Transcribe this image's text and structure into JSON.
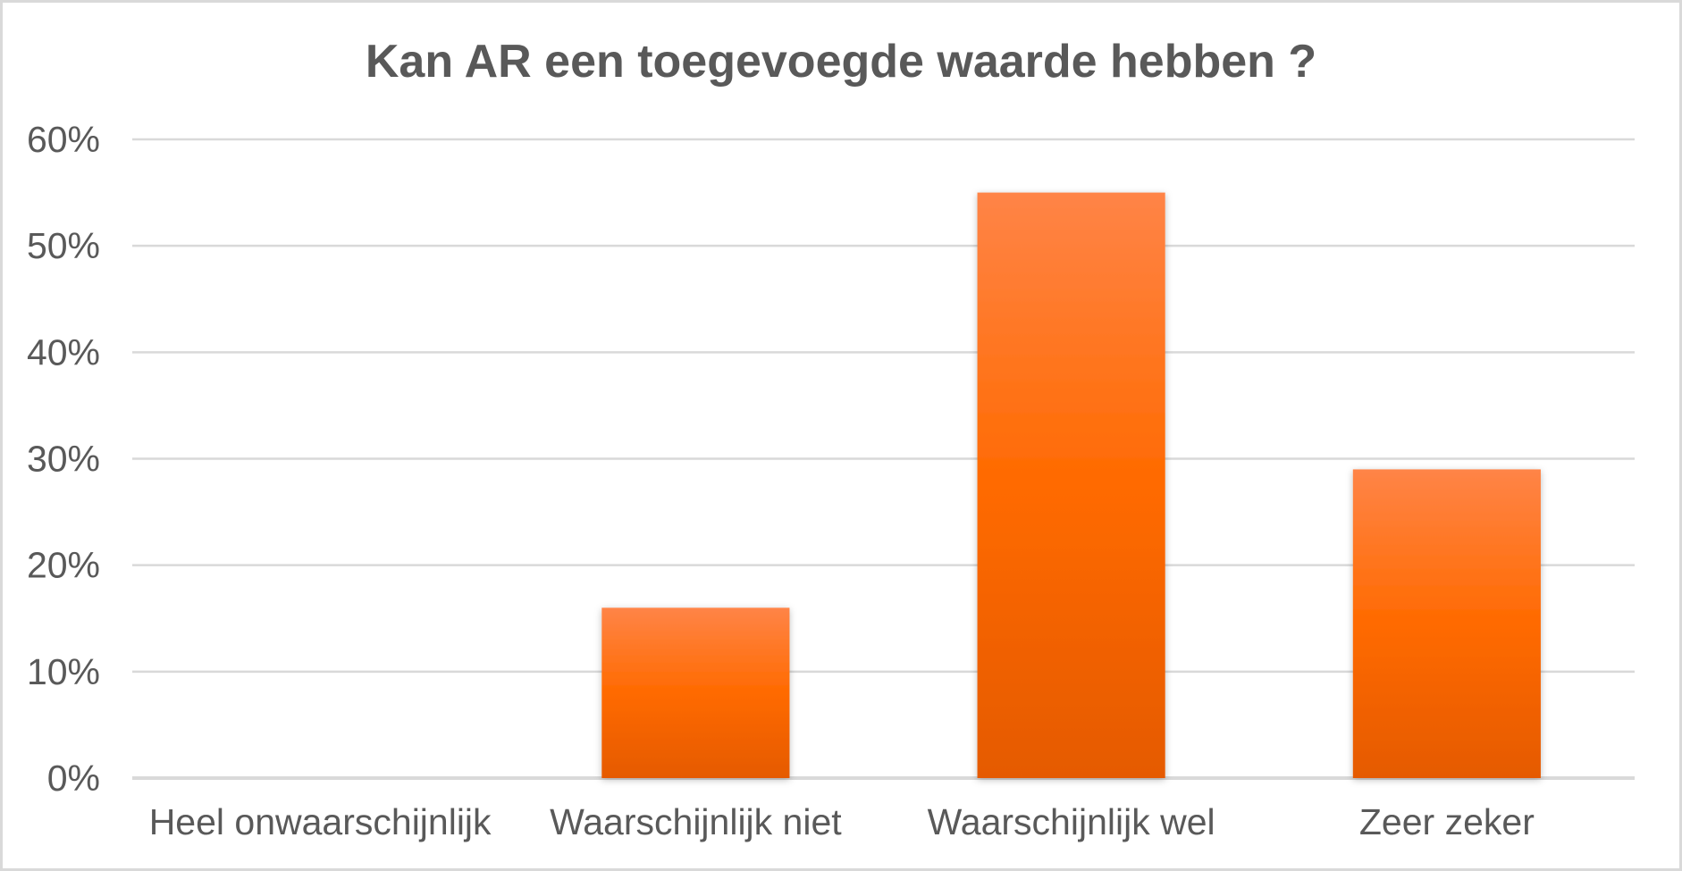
{
  "chart_data": {
    "type": "bar",
    "title": "Kan AR een toegevoegde waarde hebben ?",
    "xlabel": "",
    "ylabel": "",
    "categories": [
      "Heel onwaarschijnlijk",
      "Waarschijnlijk niet",
      "Waarschijnlijk wel",
      "Zeer zeker"
    ],
    "values": [
      0,
      16,
      55,
      29
    ],
    "ylim": [
      0,
      60
    ],
    "yticks": [
      0,
      10,
      20,
      30,
      40,
      50,
      60
    ],
    "ytick_labels": [
      "0%",
      "10%",
      "20%",
      "30%",
      "40%",
      "50%",
      "60%"
    ],
    "grid": true,
    "legend": "none",
    "colors": {
      "bar_top": "#ff8447",
      "bar_mid": "#ff6a00",
      "bar_bottom": "#e55a00",
      "grid": "#d9d9d9",
      "text": "#595959",
      "border": "#d9d9d9"
    }
  }
}
